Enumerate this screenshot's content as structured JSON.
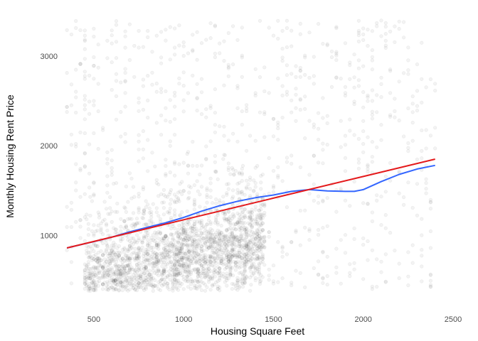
{
  "chart_data": {
    "type": "scatter",
    "title": "",
    "xlabel": "Housing Square Feet",
    "ylabel": "Monthly Housing Rent Price",
    "xlim": [
      330,
      2500
    ],
    "ylim": [
      250,
      3450
    ],
    "x_ticks": [
      500,
      1000,
      1500,
      2000,
      2500
    ],
    "y_ticks": [
      1000,
      2000,
      3000
    ],
    "grid": false,
    "point_color": "#333333",
    "point_alpha": 0.06,
    "series": [
      {
        "type": "smooth",
        "color": "#3366FF",
        "x": [
          350,
          500,
          600,
          700,
          800,
          900,
          1000,
          1100,
          1200,
          1300,
          1400,
          1500,
          1600,
          1700,
          1800,
          1900,
          1950,
          2000,
          2100,
          2200,
          2300,
          2400
        ],
        "y": [
          860,
          930,
          980,
          1040,
          1090,
          1140,
          1200,
          1270,
          1330,
          1380,
          1420,
          1450,
          1490,
          1510,
          1495,
          1490,
          1490,
          1510,
          1600,
          1680,
          1740,
          1780
        ]
      },
      {
        "type": "linear",
        "color": "#E41A1C",
        "x": [
          350,
          2400
        ],
        "y": [
          860,
          1850
        ]
      }
    ]
  }
}
